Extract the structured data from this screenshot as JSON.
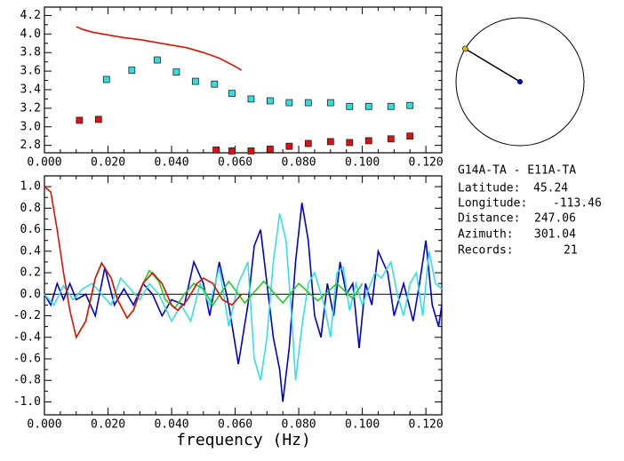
{
  "chart_data": [
    {
      "type": "line",
      "xlim": [
        0,
        0.125
      ],
      "ylim": [
        2.72,
        4.29
      ],
      "xticks": [
        {
          "value": 0,
          "label": "0.000"
        },
        {
          "value": 0.02,
          "label": "0.020"
        },
        {
          "value": 0.04,
          "label": "0.040"
        },
        {
          "value": 0.06,
          "label": "0.060"
        },
        {
          "value": 0.08,
          "label": "0.080"
        },
        {
          "value": 0.1,
          "label": "0.100"
        },
        {
          "value": 0.12,
          "label": "0.120"
        }
      ],
      "yticks": [
        2.8,
        {
          "value": 3.0,
          "label": "3.0"
        },
        3.2,
        3.4,
        3.6,
        3.8,
        {
          "value": 4.0,
          "label": "4.0"
        },
        4.2
      ],
      "series": [
        {
          "marker": "none",
          "color": "#dd1100",
          "x": [
            0.01,
            0.012,
            0.015,
            0.02,
            0.025,
            0.03,
            0.035,
            0.04,
            0.045,
            0.05,
            0.055,
            0.06,
            0.062
          ],
          "values": [
            4.08,
            4.05,
            4.02,
            3.99,
            3.96,
            3.94,
            3.91,
            3.88,
            3.85,
            3.8,
            3.74,
            3.65,
            3.61
          ]
        },
        {
          "marker": "square",
          "color": "#33dddd",
          "x": [
            0.0195,
            0.0275,
            0.0355,
            0.0415,
            0.0475,
            0.0535,
            0.059,
            0.065,
            0.071,
            0.077,
            0.083,
            0.09,
            0.096,
            0.102,
            0.109,
            0.115
          ],
          "values": [
            3.51,
            3.61,
            3.72,
            3.59,
            3.49,
            3.46,
            3.36,
            3.3,
            3.28,
            3.26,
            3.26,
            3.26,
            3.22,
            3.22,
            3.22,
            3.23
          ]
        },
        {
          "marker": "square",
          "color": "#dd1111",
          "x": [
            0.011,
            0.017,
            0.054,
            0.059,
            0.065,
            0.071,
            0.077,
            0.083,
            0.09,
            0.096,
            0.102,
            0.109,
            0.115
          ],
          "values": [
            3.07,
            3.08,
            2.75,
            2.74,
            2.74,
            2.76,
            2.79,
            2.82,
            2.84,
            2.83,
            2.85,
            2.87,
            2.9
          ]
        }
      ]
    },
    {
      "type": "line",
      "x_label": "frequency (Hz)",
      "xlim": [
        0,
        0.125
      ],
      "ylim": [
        -1.12,
        1.1
      ],
      "xticks": [
        {
          "value": 0,
          "label": "0.000"
        },
        {
          "value": 0.02,
          "label": "0.020"
        },
        {
          "value": 0.04,
          "label": "0.040"
        },
        {
          "value": 0.06,
          "label": "0.060"
        },
        {
          "value": 0.08,
          "label": "0.080"
        },
        {
          "value": 0.1,
          "label": "0.100"
        },
        {
          "value": 0.12,
          "label": "0.120"
        }
      ],
      "yticks": [
        {
          "value": -1.0,
          "label": "-1.0"
        },
        -0.8,
        -0.6,
        -0.4,
        -0.2,
        {
          "value": 0,
          "label": "0.0"
        },
        0.2,
        0.4,
        0.6,
        0.8,
        {
          "value": 1.0,
          "label": "1.0"
        }
      ],
      "series": [
        {
          "marker": "none",
          "color": "#0000cc",
          "x": [
            0,
            0.002,
            0.004,
            0.006,
            0.008,
            0.01,
            0.013,
            0.016,
            0.019,
            0.022,
            0.025,
            0.028,
            0.031,
            0.034,
            0.037,
            0.04,
            0.044,
            0.047,
            0.05,
            0.052,
            0.055,
            0.058,
            0.061,
            0.064,
            0.066,
            0.068,
            0.07,
            0.072,
            0.074,
            0.075,
            0.077,
            0.079,
            0.081,
            0.083,
            0.085,
            0.087,
            0.089,
            0.091,
            0.093,
            0.095,
            0.097,
            0.099,
            0.101,
            0.103,
            0.105,
            0.108,
            0.11,
            0.113,
            0.116,
            0.118,
            0.12,
            0.122,
            0.124,
            0.125
          ],
          "values": [
            0.0,
            -0.1,
            0.1,
            -0.05,
            0.1,
            -0.05,
            0.0,
            -0.2,
            0.25,
            -0.1,
            0.05,
            -0.1,
            0.1,
            0.0,
            -0.2,
            -0.05,
            -0.1,
            0.3,
            0.1,
            -0.2,
            0.3,
            -0.1,
            -0.65,
            -0.1,
            0.45,
            0.6,
            0.1,
            -0.4,
            -0.7,
            -1.0,
            -0.5,
            0.3,
            0.85,
            0.5,
            -0.2,
            -0.4,
            0.1,
            -0.2,
            0.3,
            0.0,
            0.1,
            -0.5,
            0.1,
            -0.1,
            0.4,
            0.2,
            -0.2,
            0.1,
            -0.25,
            0.1,
            0.5,
            -0.1,
            -0.3,
            -0.1
          ]
        },
        {
          "marker": "none",
          "color": "#33e0e8",
          "x": [
            0,
            0.003,
            0.006,
            0.009,
            0.012,
            0.015,
            0.018,
            0.021,
            0.024,
            0.027,
            0.03,
            0.033,
            0.036,
            0.04,
            0.043,
            0.046,
            0.049,
            0.052,
            0.055,
            0.058,
            0.061,
            0.064,
            0.066,
            0.068,
            0.07,
            0.072,
            0.074,
            0.076,
            0.078,
            0.079,
            0.081,
            0.083,
            0.085,
            0.088,
            0.09,
            0.092,
            0.094,
            0.096,
            0.098,
            0.1,
            0.102,
            0.104,
            0.106,
            0.109,
            0.111,
            0.113,
            0.115,
            0.117,
            0.119,
            0.121,
            0.123,
            0.125
          ],
          "values": [
            0.0,
            -0.1,
            0.08,
            -0.05,
            0.05,
            0.1,
            0.0,
            -0.1,
            0.15,
            0.05,
            -0.05,
            0.1,
            0.0,
            -0.25,
            -0.1,
            -0.25,
            0.1,
            -0.1,
            0.25,
            -0.3,
            0.1,
            0.3,
            -0.6,
            -0.8,
            -0.4,
            0.3,
            0.75,
            0.5,
            -0.3,
            -0.8,
            -0.3,
            0.1,
            0.2,
            -0.1,
            -0.4,
            0.2,
            0.25,
            -0.15,
            0.1,
            -0.1,
            0.05,
            0.2,
            0.15,
            0.3,
            0.0,
            -0.2,
            0.1,
            0.2,
            -0.2,
            0.4,
            0.1,
            0.05
          ]
        },
        {
          "marker": "none",
          "color": "#22cc22",
          "x": [
            0.01,
            0.013,
            0.016,
            0.018,
            0.021,
            0.023,
            0.026,
            0.028,
            0.031,
            0.033,
            0.036,
            0.038,
            0.041,
            0.044,
            0.047,
            0.05,
            0.053,
            0.058,
            0.063,
            0.069,
            0.075,
            0.08,
            0.086,
            0.092,
            0.097,
            0.1
          ],
          "values": [
            -0.4,
            -0.25,
            0.15,
            0.29,
            0.15,
            -0.05,
            -0.22,
            -0.15,
            0.1,
            0.22,
            0.12,
            -0.05,
            -0.13,
            0.0,
            0.1,
            0.05,
            -0.1,
            0.12,
            -0.08,
            0.12,
            -0.08,
            0.1,
            -0.06,
            0.1,
            -0.04,
            0.1
          ]
        },
        {
          "marker": "none",
          "color": "#dd1100",
          "x": [
            0,
            0.002,
            0.004,
            0.006,
            0.008,
            0.01,
            0.013,
            0.016,
            0.018,
            0.021,
            0.023,
            0.026,
            0.028,
            0.031,
            0.034,
            0.037,
            0.04,
            0.042,
            0.045,
            0.048,
            0.05,
            0.053,
            0.056,
            0.059,
            0.062
          ],
          "values": [
            1.0,
            0.95,
            0.6,
            0.2,
            -0.15,
            -0.4,
            -0.25,
            0.15,
            0.29,
            0.15,
            -0.05,
            -0.22,
            -0.15,
            0.1,
            0.2,
            0.1,
            -0.1,
            -0.15,
            -0.05,
            0.1,
            0.15,
            0.1,
            -0.05,
            -0.1,
            0.0
          ]
        }
      ]
    }
  ],
  "station_info": {
    "pair": "G14A-TA  - E11A-TA",
    "rows": [
      {
        "label": "Latitude:",
        "value": 45.24
      },
      {
        "label": "Longitude:",
        "value": -113.46
      },
      {
        "label": "Distance:",
        "value": 247.06
      },
      {
        "label": "Azimuth:",
        "value": 301.04
      },
      {
        "label": "Records:",
        "value": 21
      }
    ]
  }
}
